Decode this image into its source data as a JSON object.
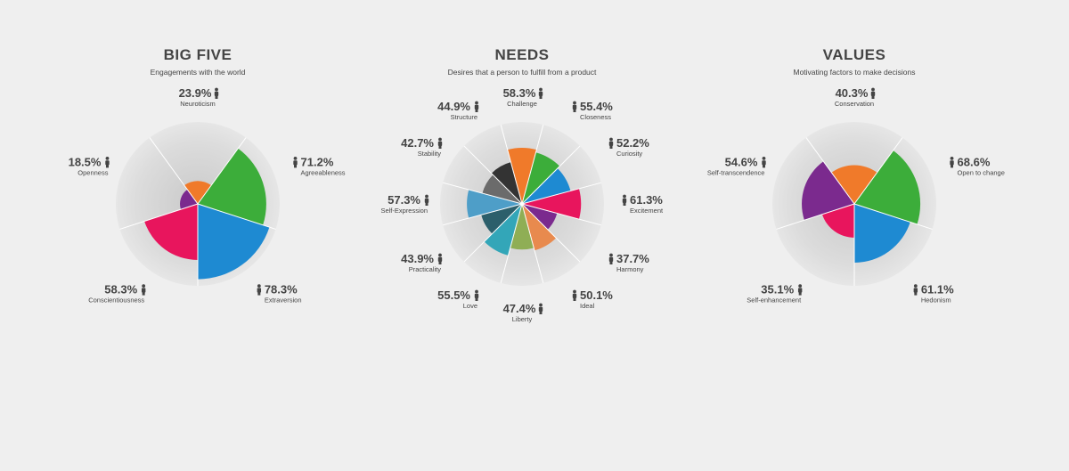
{
  "chart_data": [
    {
      "type": "polar-area",
      "title": "BIG FIVE",
      "subtitle": "Engagements with the world",
      "categories": [
        "Neuroticism",
        "Agreeableness",
        "Extraversion",
        "Conscientiousness",
        "Openness"
      ],
      "values": [
        23.9,
        71.2,
        78.3,
        58.3,
        18.5
      ],
      "value_labels": [
        "23.9%",
        "71.2%",
        "78.3%",
        "58.3%",
        "18.5%"
      ],
      "colors": [
        "#f07a2a",
        "#3cad3a",
        "#1e8ad2",
        "#e8155d",
        "#7b2a8e"
      ],
      "vlim": [
        0,
        100
      ],
      "icon": "person-icon"
    },
    {
      "type": "polar-area",
      "title": "NEEDS",
      "subtitle": "Desires that a person to fulfill from a product",
      "categories": [
        "Challenge",
        "Closeness",
        "Curiosity",
        "Excitement",
        "Harmony",
        "Ideal",
        "Liberty",
        "Love",
        "Practicality",
        "Self-Expression",
        "Stability",
        "Structure"
      ],
      "values": [
        58.3,
        55.4,
        52.2,
        61.3,
        37.7,
        50.1,
        47.4,
        55.5,
        43.9,
        57.3,
        42.7,
        44.9
      ],
      "value_labels": [
        "58.3%",
        "55.4%",
        "52.2%",
        "61.3%",
        "37.7%",
        "50.1%",
        "47.4%",
        "55.5%",
        "43.9%",
        "57.3%",
        "42.7%",
        "44.9%"
      ],
      "colors": [
        "#f07a2a",
        "#3cad3a",
        "#1e8ad2",
        "#e8155d",
        "#7b2a8e",
        "#e88a4e",
        "#8fae55",
        "#33a6b8",
        "#2c5f6b",
        "#4e9ec8",
        "#6b6b6b",
        "#333333"
      ],
      "vlim": [
        0,
        100
      ],
      "icon": "person-icon"
    },
    {
      "type": "polar-area",
      "title": "VALUES",
      "subtitle": "Motivating factors to make decisions",
      "categories": [
        "Conservation",
        "Open to change",
        "Hedonism",
        "Self-enhancement",
        "Self-transcendence"
      ],
      "values": [
        40.3,
        68.6,
        61.1,
        35.1,
        54.6
      ],
      "value_labels": [
        "40.3%",
        "68.6%",
        "61.1%",
        "35.1%",
        "54.6%"
      ],
      "colors": [
        "#f07a2a",
        "#3cad3a",
        "#1e8ad2",
        "#e8155d",
        "#7b2a8e"
      ],
      "vlim": [
        0,
        100
      ],
      "icon": "person-icon"
    }
  ]
}
